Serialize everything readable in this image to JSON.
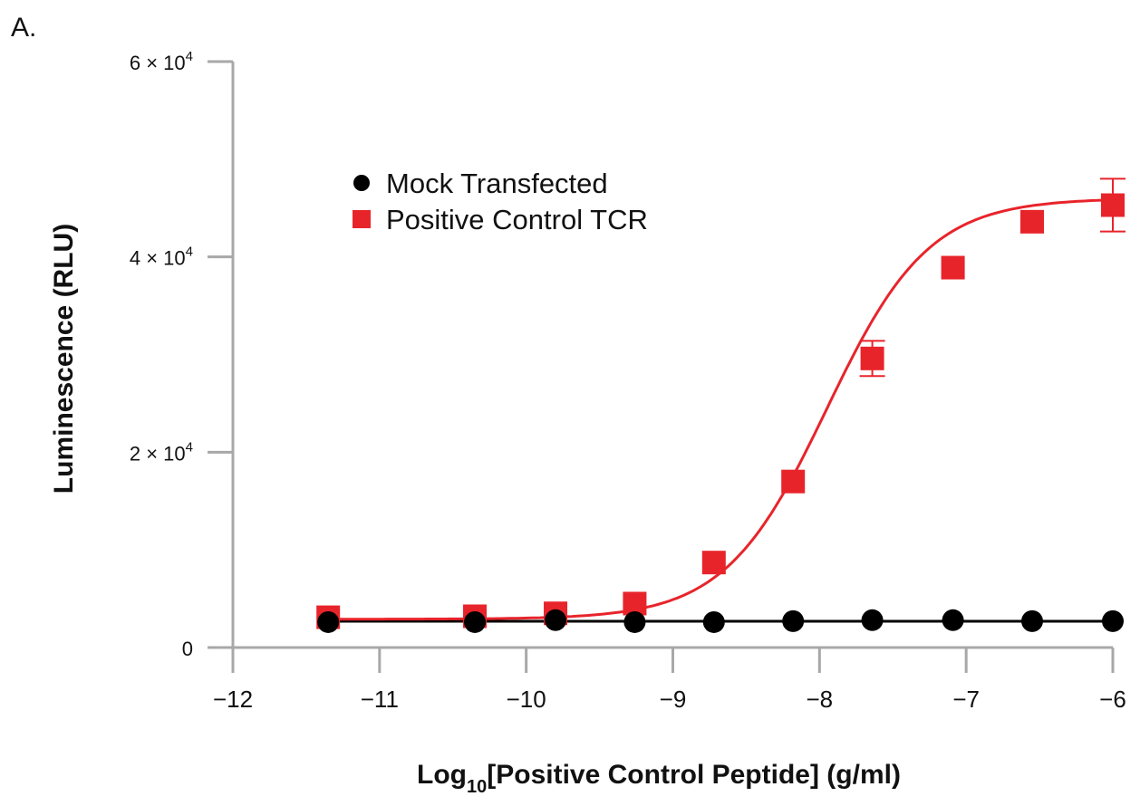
{
  "panel_label": "A.",
  "chart_data": {
    "type": "scatter",
    "xlabel_main": "Log",
    "xlabel_sub": "10",
    "xlabel_rest": "[Positive Control Peptide] (g/ml)",
    "ylabel": "Luminescence (RLU)",
    "xlim": [
      -12,
      -6
    ],
    "ylim": [
      0,
      60000
    ],
    "xticks": [
      -12,
      -11,
      -10,
      -9,
      -8,
      -7,
      -6
    ],
    "xtick_labels": [
      "−12",
      "−11",
      "−10",
      "−9",
      "−8",
      "−7",
      "−6"
    ],
    "yticks": [
      {
        "value": 0,
        "mantissa": "0",
        "exponent": ""
      },
      {
        "value": 20000,
        "mantissa": "2 × 10",
        "exponent": "4"
      },
      {
        "value": 40000,
        "mantissa": "4 × 10",
        "exponent": "4"
      },
      {
        "value": 60000,
        "mantissa": "6 × 10",
        "exponent": "4"
      }
    ],
    "legend_position": "upper-left",
    "series": [
      {
        "name": "Mock Transfected",
        "color": "#000000",
        "marker": "circle",
        "x": [
          -11.35,
          -10.35,
          -9.8,
          -9.26,
          -8.72,
          -8.18,
          -7.64,
          -7.09,
          -6.55,
          -6.0
        ],
        "y": [
          2600,
          2600,
          2800,
          2600,
          2600,
          2700,
          2800,
          2800,
          2700,
          2700
        ],
        "fit": "flat"
      },
      {
        "name": "Positive Control TCR",
        "color": "#e8242b",
        "marker": "square",
        "x": [
          -11.35,
          -10.35,
          -9.8,
          -9.26,
          -8.72,
          -8.18,
          -7.64,
          -7.09,
          -6.55,
          -6.0
        ],
        "y": [
          3100,
          3200,
          3500,
          4500,
          8700,
          17000,
          29600,
          38900,
          43600,
          45300
        ],
        "error": [
          0,
          0,
          0,
          0,
          0,
          0,
          1800,
          0,
          0,
          2700
        ],
        "fit": "sigmoid",
        "fit_params": {
          "bottom": 2900,
          "top": 46000,
          "logEC50": -7.95,
          "hill": 1.25
        }
      }
    ]
  }
}
